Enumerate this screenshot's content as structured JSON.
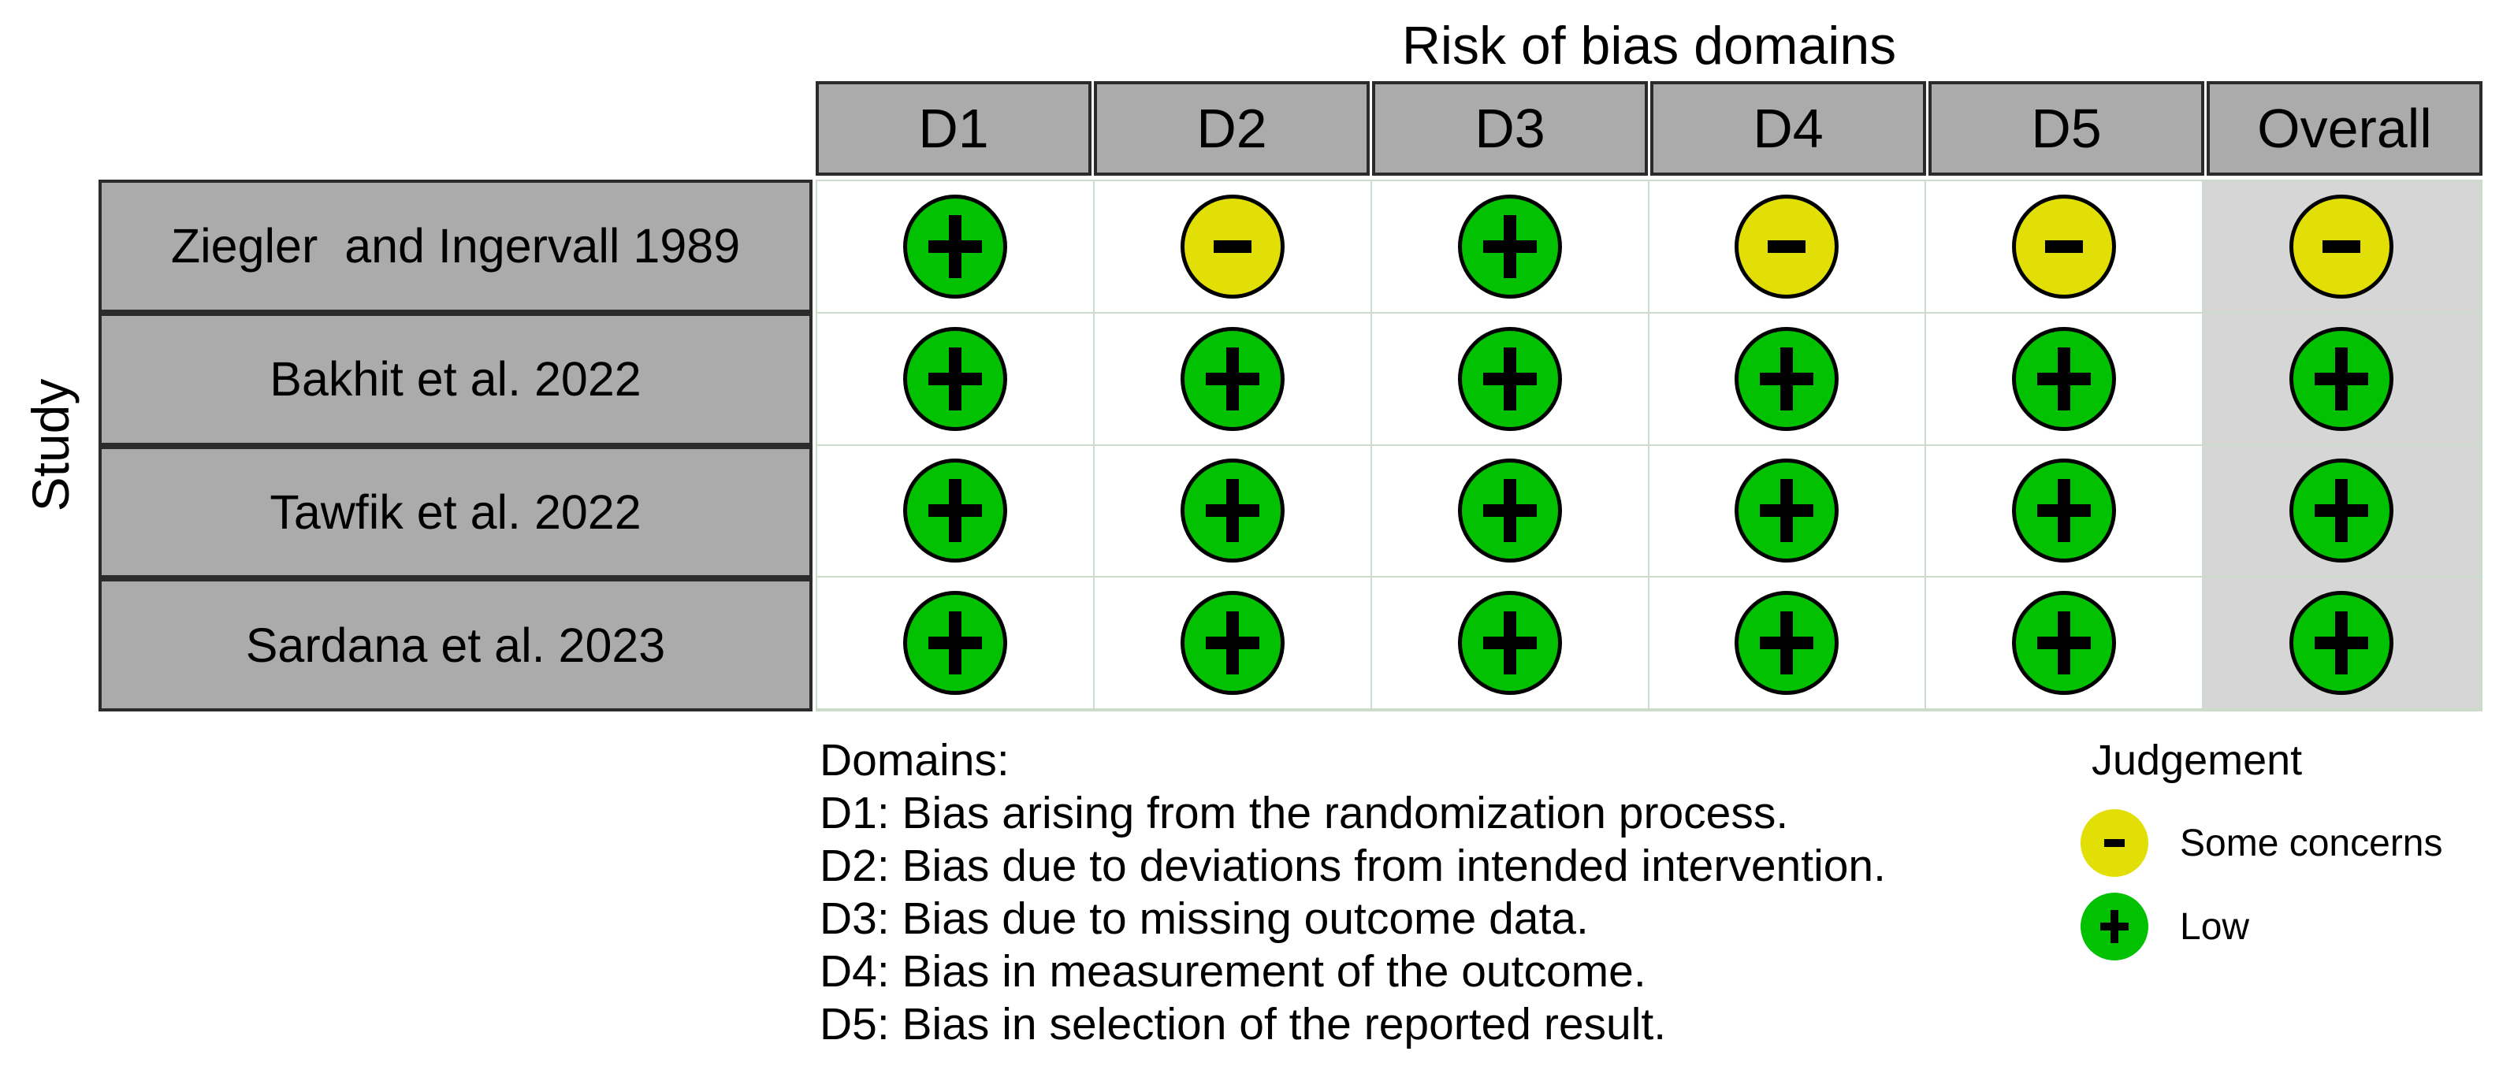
{
  "chart_data": {
    "type": "heatmap",
    "title": "Risk of bias domains",
    "ylabel": "Study",
    "columns": [
      "D1",
      "D2",
      "D3",
      "D4",
      "D5",
      "Overall"
    ],
    "rows": [
      "Ziegler  and Ingervall 1989",
      "Bakhit et al. 2022",
      "Tawfik et al. 2022",
      "Sardana et al. 2023"
    ],
    "values": [
      [
        "Low",
        "Some concerns",
        "Low",
        "Some concerns",
        "Some concerns",
        "Some concerns"
      ],
      [
        "Low",
        "Low",
        "Low",
        "Low",
        "Low",
        "Low"
      ],
      [
        "Low",
        "Low",
        "Low",
        "Low",
        "Low",
        "Low"
      ],
      [
        "Low",
        "Low",
        "Low",
        "Low",
        "Low",
        "Low"
      ]
    ],
    "legend": {
      "title": "Judgement",
      "entries": [
        {
          "label": "Some concerns",
          "symbol": "-",
          "color": "#E2DF07"
        },
        {
          "label": "Low",
          "symbol": "+",
          "color": "#02C100"
        }
      ]
    },
    "notes": {
      "heading": "Domains:",
      "items": [
        "D1: Bias arising from the randomization process.",
        "D2: Bias due to deviations from intended intervention.",
        "D3: Bias due to missing outcome data.",
        "D4: Bias in measurement of the outcome.",
        "D5: Bias in selection of the reported result."
      ]
    },
    "style_colors": {
      "header_bg": "#ABABAB",
      "overall_column_bg": "#D6D6D6",
      "grid_line": "#CCDCCC",
      "box_border": "#2B2B2B",
      "circle_outline": "#000000"
    },
    "layout": {
      "grid_on": true,
      "legend_position": "bottom-right"
    }
  }
}
